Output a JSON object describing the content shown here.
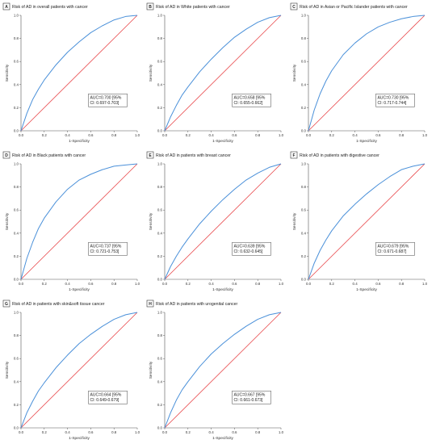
{
  "colors": {
    "roc": "#4a90d9",
    "reference": "#e8474a",
    "axis": "#555555",
    "box": "#444444"
  },
  "chart_data": [
    {
      "type": "line",
      "panel_letter": "A",
      "title": "Risk of AD in overall patients with cancer",
      "xlabel": "1-Specificity",
      "ylabel": "Sensitivity",
      "xlim": [
        0,
        1
      ],
      "ylim": [
        0,
        1
      ],
      "x_ticks": [
        "0.0",
        "0.2",
        "0.4",
        "0.6",
        "0.8",
        "1.0"
      ],
      "y_ticks": [
        "0.0",
        "0.2",
        "0.4",
        "0.6",
        "0.8",
        "1.0"
      ],
      "auc_text": [
        "AUC=0.700 [95%",
        "CI: 0.697-0.703]"
      ],
      "series": [
        {
          "x": [
            0,
            0.05,
            0.1,
            0.15,
            0.2,
            0.3,
            0.4,
            0.5,
            0.6,
            0.7,
            0.8,
            0.9,
            1.0
          ],
          "y": [
            0,
            0.15,
            0.27,
            0.36,
            0.44,
            0.57,
            0.68,
            0.77,
            0.85,
            0.91,
            0.96,
            0.99,
            1.0
          ]
        },
        {
          "x": [
            0,
            1
          ],
          "y": [
            0,
            1
          ]
        }
      ]
    },
    {
      "type": "line",
      "panel_letter": "B",
      "title": "Risk of AD in White patients with cancer",
      "xlabel": "1-Specificity",
      "ylabel": "Sensitivity",
      "xlim": [
        0,
        1
      ],
      "ylim": [
        0,
        1
      ],
      "x_ticks": [
        "0.0",
        "0.2",
        "0.4",
        "0.6",
        "0.8",
        "1.0"
      ],
      "y_ticks": [
        "0.0",
        "0.2",
        "0.4",
        "0.6",
        "0.8",
        "1.0"
      ],
      "auc_text": [
        "AUC=0.658 [95%",
        "CI: 0.655-0.662]"
      ],
      "series": [
        {
          "x": [
            0,
            0.05,
            0.1,
            0.15,
            0.2,
            0.3,
            0.4,
            0.5,
            0.6,
            0.7,
            0.8,
            0.9,
            1.0
          ],
          "y": [
            0,
            0.12,
            0.22,
            0.31,
            0.38,
            0.51,
            0.62,
            0.72,
            0.81,
            0.88,
            0.94,
            0.98,
            1.0
          ]
        },
        {
          "x": [
            0,
            1
          ],
          "y": [
            0,
            1
          ]
        }
      ]
    },
    {
      "type": "line",
      "panel_letter": "C",
      "title": "Risk of AD in Asian or Pacific Islander patients with cancer",
      "xlabel": "1-Specificity",
      "ylabel": "Sensitivity",
      "xlim": [
        0,
        1
      ],
      "ylim": [
        0,
        1
      ],
      "x_ticks": [
        "0.0",
        "0.2",
        "0.4",
        "0.6",
        "0.8",
        "1.0"
      ],
      "y_ticks": [
        "0.0",
        "0.2",
        "0.4",
        "0.6",
        "0.8",
        "1.0"
      ],
      "auc_text": [
        "AUC=0.730 [95%",
        "CI: 0.717-0.744]"
      ],
      "series": [
        {
          "x": [
            0,
            0.05,
            0.1,
            0.15,
            0.2,
            0.3,
            0.4,
            0.5,
            0.6,
            0.7,
            0.8,
            0.9,
            1.0
          ],
          "y": [
            0,
            0.18,
            0.32,
            0.43,
            0.52,
            0.66,
            0.76,
            0.84,
            0.9,
            0.94,
            0.97,
            0.99,
            1.0
          ]
        },
        {
          "x": [
            0,
            1
          ],
          "y": [
            0,
            1
          ]
        }
      ]
    },
    {
      "type": "line",
      "panel_letter": "D",
      "title": "Risk of AD in Black patients with cancer",
      "xlabel": "1-Specificity",
      "ylabel": "Sensitivity",
      "xlim": [
        0,
        1
      ],
      "ylim": [
        0,
        1
      ],
      "x_ticks": [
        "0.0",
        "0.2",
        "0.4",
        "0.6",
        "0.8",
        "1.0"
      ],
      "y_ticks": [
        "0.0",
        "0.2",
        "0.4",
        "0.6",
        "0.8",
        "1.0"
      ],
      "auc_text": [
        "AUC=0.737 [95%",
        "CI: 0.721-0.753]"
      ],
      "series": [
        {
          "x": [
            0,
            0.05,
            0.1,
            0.15,
            0.2,
            0.3,
            0.4,
            0.5,
            0.6,
            0.7,
            0.8,
            0.9,
            1.0
          ],
          "y": [
            0,
            0.18,
            0.32,
            0.44,
            0.53,
            0.67,
            0.78,
            0.86,
            0.91,
            0.95,
            0.98,
            0.99,
            1.0
          ]
        },
        {
          "x": [
            0,
            1
          ],
          "y": [
            0,
            1
          ]
        }
      ]
    },
    {
      "type": "line",
      "panel_letter": "E",
      "title": "Risk of AD in patients with breast cancer",
      "xlabel": "1-Specificity",
      "ylabel": "Sensitivity",
      "xlim": [
        0,
        1
      ],
      "ylim": [
        0,
        1
      ],
      "x_ticks": [
        "0.0",
        "0.2",
        "0.4",
        "0.6",
        "0.8",
        "1.0"
      ],
      "y_ticks": [
        "0.0",
        "0.2",
        "0.4",
        "0.6",
        "0.8",
        "1.0"
      ],
      "auc_text": [
        "AUC=0.639 [95%",
        "CI: 0.632-0.645]"
      ],
      "series": [
        {
          "x": [
            0,
            0.05,
            0.1,
            0.15,
            0.2,
            0.3,
            0.4,
            0.5,
            0.6,
            0.7,
            0.8,
            0.9,
            1.0
          ],
          "y": [
            0,
            0.11,
            0.2,
            0.28,
            0.35,
            0.48,
            0.59,
            0.69,
            0.78,
            0.86,
            0.92,
            0.97,
            1.0
          ]
        },
        {
          "x": [
            0,
            1
          ],
          "y": [
            0,
            1
          ]
        }
      ]
    },
    {
      "type": "line",
      "panel_letter": "F",
      "title": "Risk of AD in patients with digestive cancer",
      "xlabel": "1-Specificity",
      "ylabel": "Sensitivity",
      "xlim": [
        0,
        1
      ],
      "ylim": [
        0,
        1
      ],
      "x_ticks": [
        "0.0",
        "0.2",
        "0.4",
        "0.6",
        "0.8",
        "1.0"
      ],
      "y_ticks": [
        "0.0",
        "0.2",
        "0.4",
        "0.6",
        "0.8",
        "1.0"
      ],
      "auc_text": [
        "AUC=0.679 [95%",
        "CI: 0.671-0.687]"
      ],
      "series": [
        {
          "x": [
            0,
            0.05,
            0.1,
            0.15,
            0.2,
            0.3,
            0.4,
            0.5,
            0.6,
            0.7,
            0.8,
            0.9,
            1.0
          ],
          "y": [
            0,
            0.14,
            0.25,
            0.34,
            0.42,
            0.55,
            0.65,
            0.74,
            0.82,
            0.89,
            0.95,
            0.98,
            1.0
          ]
        },
        {
          "x": [
            0,
            1
          ],
          "y": [
            0,
            1
          ]
        }
      ]
    },
    {
      "type": "line",
      "panel_letter": "G",
      "title": "Risk of AD in patients with skin&soft tissue cancer",
      "xlabel": "1-Specificity",
      "ylabel": "Sensitivity",
      "xlim": [
        0,
        1
      ],
      "ylim": [
        0,
        1
      ],
      "x_ticks": [
        "0.0",
        "0.2",
        "0.4",
        "0.6",
        "0.8",
        "1.0"
      ],
      "y_ticks": [
        "0.0",
        "0.2",
        "0.4",
        "0.6",
        "0.8",
        "1.0"
      ],
      "auc_text": [
        "AUC=0.664 [95%",
        "CI: 0.649-0.679]"
      ],
      "series": [
        {
          "x": [
            0,
            0.05,
            0.1,
            0.15,
            0.2,
            0.3,
            0.4,
            0.5,
            0.6,
            0.7,
            0.8,
            0.9,
            1.0
          ],
          "y": [
            0,
            0.13,
            0.23,
            0.32,
            0.39,
            0.52,
            0.63,
            0.73,
            0.81,
            0.88,
            0.94,
            0.98,
            1.0
          ]
        },
        {
          "x": [
            0,
            1
          ],
          "y": [
            0,
            1
          ]
        }
      ]
    },
    {
      "type": "line",
      "panel_letter": "H",
      "title": "Risk of AD in patients with urogenital cancer",
      "xlabel": "1-Specificity",
      "ylabel": "Sensitivity",
      "xlim": [
        0,
        1
      ],
      "ylim": [
        0,
        1
      ],
      "x_ticks": [
        "0.0",
        "0.2",
        "0.4",
        "0.6",
        "0.8",
        "1.0"
      ],
      "y_ticks": [
        "0.0",
        "0.2",
        "0.4",
        "0.6",
        "0.8",
        "1.0"
      ],
      "auc_text": [
        "AUC=0.667 [95%",
        "CI: 0.661-0.673]"
      ],
      "series": [
        {
          "x": [
            0,
            0.05,
            0.1,
            0.15,
            0.2,
            0.3,
            0.4,
            0.5,
            0.6,
            0.7,
            0.8,
            0.9,
            1.0
          ],
          "y": [
            0,
            0.13,
            0.24,
            0.33,
            0.4,
            0.53,
            0.64,
            0.73,
            0.81,
            0.88,
            0.94,
            0.98,
            1.0
          ]
        },
        {
          "x": [
            0,
            1
          ],
          "y": [
            0,
            1
          ]
        }
      ]
    }
  ]
}
